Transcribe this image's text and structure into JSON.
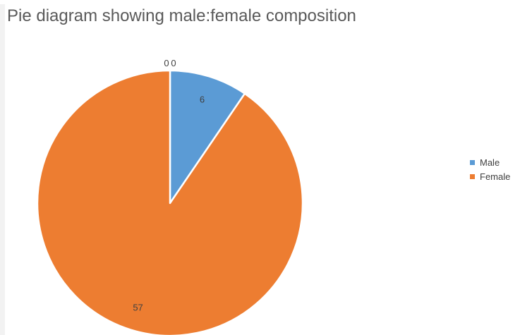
{
  "chart_data": {
    "type": "pie",
    "title": "Pie diagram showing male:female composition",
    "categories": [
      "",
      "",
      "Male",
      "Female"
    ],
    "values": [
      0,
      0,
      6,
      57
    ],
    "data_labels": [
      "0",
      "0",
      "6",
      "57"
    ],
    "colors": [
      "#5b9bd5",
      "#ed7d31",
      "#5b9bd5",
      "#ed7d31"
    ],
    "legend": {
      "placement": "right",
      "entries": [
        {
          "label": "Male",
          "color": "#5b9bd5"
        },
        {
          "label": "Female",
          "color": "#ed7d31"
        }
      ]
    }
  }
}
